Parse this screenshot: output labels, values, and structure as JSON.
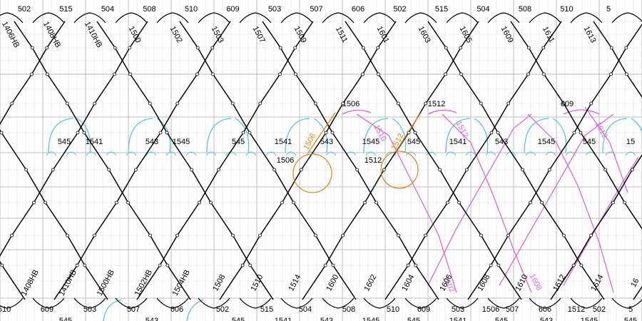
{
  "colors": {
    "line": "#000000",
    "grid_major": "#bdbdbd",
    "grid_minor": "#e2e2e2",
    "cyan": "#55c8dc",
    "orange": "#e08a1e",
    "magenta": "#d86ad8"
  },
  "top_labels": [
    "502",
    "515",
    "504",
    "508",
    "510",
    "609",
    "503",
    "507",
    "606",
    "502",
    "515",
    "504",
    "508",
    "510",
    "5"
  ],
  "top_slanted": [
    "1406HB",
    "1408HB",
    "1410HB",
    "1500",
    "1502",
    "1503",
    "1507",
    "1509",
    "1511",
    "1601",
    "1603",
    "1605",
    "1609",
    "1611",
    "1613"
  ],
  "upper_mid_labels": [
    "1506",
    "1512",
    "609"
  ],
  "mid_labels": [
    "545",
    "1541",
    "543",
    "1545",
    "545",
    "1541",
    "543",
    "1545",
    "545",
    "1541",
    "543",
    "1545",
    "545",
    "15"
  ],
  "mid_low_labels": [
    "1506",
    "1512"
  ],
  "orange_labels": [
    "1506",
    "1512"
  ],
  "pink_labels": [
    "1510",
    "1512",
    "1602",
    "1608",
    "1612"
  ],
  "bottom_slanted": [
    "1408HB",
    "1410HB",
    "1500HB",
    "1502HB",
    "1504HB",
    "1508",
    "1510",
    "1514",
    "1600",
    "1602",
    "1604",
    "1606",
    "1608",
    "1610",
    "1612",
    "1614",
    "16"
  ],
  "bottom_labels": [
    "510",
    "609",
    "503",
    "507",
    "606",
    "502",
    "515",
    "504",
    "508",
    "510",
    "609",
    "503",
    "1506",
    "507",
    "606",
    "1512",
    "502",
    "5"
  ],
  "bottom_cut_labels": [
    "545",
    "543",
    "545",
    "1541",
    "543",
    "1545",
    "545",
    "1541",
    "545",
    "543",
    "1545",
    "545"
  ]
}
